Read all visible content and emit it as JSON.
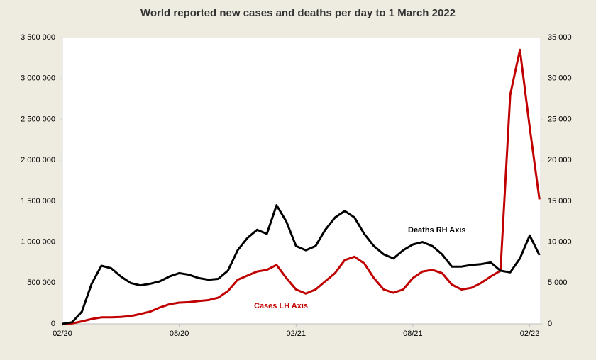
{
  "chart_data": {
    "type": "line",
    "title": "World reported new cases and deaths per day to 1 March 2022",
    "categories": [
      "02/20",
      null,
      null,
      null,
      null,
      null,
      null,
      null,
      null,
      null,
      null,
      null,
      "08/20",
      null,
      null,
      null,
      null,
      null,
      null,
      null,
      null,
      null,
      null,
      null,
      "02/21",
      null,
      null,
      null,
      null,
      null,
      null,
      null,
      null,
      null,
      null,
      null,
      "08/21",
      null,
      null,
      null,
      null,
      null,
      null,
      null,
      null,
      null,
      null,
      null,
      "02/22",
      null
    ],
    "series": [
      {
        "name": "Cases LH Axis",
        "color": "#c00000",
        "axis": "y",
        "values": [
          0,
          5000,
          30000,
          60000,
          80000,
          80000,
          85000,
          95000,
          120000,
          150000,
          200000,
          240000,
          260000,
          265000,
          280000,
          290000,
          320000,
          400000,
          540000,
          590000,
          640000,
          660000,
          720000,
          560000,
          420000,
          370000,
          420000,
          520000,
          620000,
          780000,
          820000,
          740000,
          560000,
          420000,
          380000,
          420000,
          560000,
          640000,
          660000,
          620000,
          480000,
          420000,
          440000,
          500000,
          580000,
          650000,
          2800000,
          3350000,
          2400000,
          1520000
        ]
      },
      {
        "name": "Deaths RH Axis",
        "color": "#000000",
        "axis": "y2",
        "values": [
          0,
          200,
          1500,
          4900,
          7100,
          6800,
          5800,
          5000,
          4700,
          4900,
          5200,
          5800,
          6200,
          6000,
          5600,
          5400,
          5500,
          6500,
          9000,
          10500,
          11500,
          11000,
          14500,
          12500,
          9500,
          9000,
          9500,
          11500,
          13000,
          13800,
          13000,
          11000,
          9500,
          8500,
          8000,
          9000,
          9700,
          10000,
          9500,
          8500,
          7000,
          7000,
          7200,
          7300,
          7500,
          6500,
          6300,
          8000,
          10800,
          8400
        ]
      }
    ],
    "ylim": [
      0,
      3500000
    ],
    "yticks": [
      0,
      {
        "value": 500000,
        "label": "500 000"
      },
      {
        "value": 1000000,
        "label": "1 000 000"
      },
      {
        "value": 1500000,
        "label": "1 500 000"
      },
      {
        "value": 2000000,
        "label": "2 000 000"
      },
      {
        "value": 2500000,
        "label": "2 500 000"
      },
      {
        "value": 3000000,
        "label": "3 000 000"
      },
      {
        "value": 3500000,
        "label": "3 500 000"
      }
    ],
    "y2lim": [
      0,
      35000
    ],
    "y2ticks": [
      0,
      {
        "value": 5000,
        "label": "5 000"
      },
      {
        "value": 10000,
        "label": "10 000"
      },
      {
        "value": 15000,
        "label": "15 000"
      },
      {
        "value": 20000,
        "label": "20 000"
      },
      {
        "value": 25000,
        "label": "25 000"
      },
      {
        "value": 30000,
        "label": "30 000"
      },
      {
        "value": 35000,
        "label": "35 000"
      }
    ],
    "grid": false
  }
}
